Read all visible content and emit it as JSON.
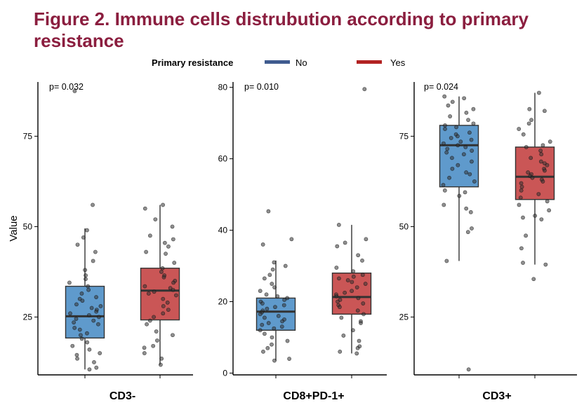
{
  "figure": {
    "title": "Figure 2. Immune cells distrubution according to primary resistance",
    "title_color": "#8B1E3F"
  },
  "legend": {
    "title": "Primary resistance",
    "placement": "top",
    "entries": [
      {
        "label": "No",
        "color": "#3F5B8F"
      },
      {
        "label": "Yes",
        "color": "#B22222"
      }
    ]
  },
  "colors": {
    "box_no": "#4E8FC6",
    "box_yes": "#C44444",
    "points": "#333333"
  },
  "chart_data": [
    {
      "type": "box",
      "category": "CD3-",
      "ylabel": "Value",
      "p_value": "p= 0.032",
      "ylim": [
        9,
        90
      ],
      "yticks": [
        25,
        50,
        75
      ],
      "series": [
        {
          "name": "No",
          "q1": 19.2,
          "median": 25.2,
          "q3": 33.5,
          "whisker_low": 10.5,
          "whisker_high": 49.5,
          "points": [
            87.5,
            56.0,
            49.0,
            47.0,
            45.0,
            43.0,
            40.5,
            38.0,
            36.5,
            35.5,
            34.5,
            33.5,
            32.5,
            31.5,
            30.5,
            30.0,
            29.5,
            28.5,
            28.0,
            27.5,
            27.0,
            26.5,
            26.0,
            25.5,
            25.0,
            24.5,
            24.0,
            23.5,
            23.0,
            22.0,
            21.5,
            20.5,
            20.0,
            19.0,
            18.0,
            17.0,
            16.0,
            15.0,
            14.5,
            13.5,
            12.5,
            11.0,
            10.5
          ]
        },
        {
          "name": "Yes",
          "q1": 24.2,
          "median": 32.3,
          "q3": 38.5,
          "whisker_low": 11.8,
          "whisker_high": 56.0,
          "points": [
            56.0,
            55.0,
            52.0,
            50.0,
            47.5,
            46.5,
            45.5,
            44.5,
            43.0,
            42.5,
            40.0,
            38.5,
            37.5,
            36.5,
            36.0,
            35.0,
            34.5,
            33.5,
            33.0,
            32.5,
            32.0,
            31.5,
            31.0,
            30.0,
            29.0,
            28.0,
            27.0,
            26.0,
            25.0,
            24.0,
            23.0,
            21.0,
            20.0,
            18.5,
            17.0,
            16.5,
            15.0,
            13.5,
            11.8
          ]
        }
      ]
    },
    {
      "type": "box",
      "category": "CD8+PD-1+",
      "ylabel": "",
      "p_value": "p= 0.010",
      "ylim": [
        -0.5,
        81.5
      ],
      "yticks": [
        0,
        20,
        40,
        60,
        80
      ],
      "series": [
        {
          "name": "No",
          "q1": 12.0,
          "median": 17.2,
          "q3": 21.0,
          "whisker_low": 3.5,
          "whisker_high": 31.5,
          "points": [
            45.3,
            37.5,
            36.0,
            31.0,
            30.0,
            29.0,
            27.5,
            26.5,
            25.0,
            24.0,
            23.0,
            22.0,
            21.5,
            21.0,
            20.5,
            20.0,
            19.5,
            19.0,
            18.5,
            18.0,
            17.5,
            17.0,
            16.5,
            16.0,
            15.5,
            15.0,
            14.5,
            14.0,
            13.5,
            13.0,
            12.5,
            12.0,
            11.0,
            10.0,
            9.0,
            8.0,
            7.0,
            6.0,
            4.0,
            3.5
          ]
        },
        {
          "name": "Yes",
          "q1": 16.5,
          "median": 21.3,
          "q3": 28.0,
          "whisker_low": 5.5,
          "whisker_high": 41.5,
          "points": [
            79.5,
            41.5,
            37.5,
            36.5,
            35.5,
            33.0,
            31.5,
            29.5,
            28.5,
            27.5,
            27.0,
            26.5,
            26.0,
            25.5,
            25.0,
            24.0,
            23.0,
            22.5,
            22.0,
            21.5,
            21.0,
            20.5,
            20.0,
            19.5,
            19.0,
            18.5,
            17.5,
            16.5,
            15.5,
            14.5,
            14.0,
            12.0,
            10.5,
            9.0,
            7.5,
            7.0,
            6.0,
            5.5
          ]
        }
      ]
    },
    {
      "type": "box",
      "category": "CD3+",
      "ylabel": "",
      "p_value": "p= 0.024",
      "ylim": [
        9,
        90
      ],
      "yticks": [
        25,
        50,
        75
      ],
      "series": [
        {
          "name": "No",
          "q1": 61.0,
          "median": 72.5,
          "q3": 78.0,
          "whisker_low": 40.5,
          "whisker_high": 86.0,
          "points": [
            86.0,
            85.5,
            84.5,
            83.5,
            82.5,
            81.5,
            80.5,
            79.5,
            78.5,
            78.0,
            77.5,
            77.0,
            76.0,
            75.5,
            75.0,
            74.5,
            74.0,
            73.5,
            73.0,
            72.5,
            72.0,
            71.5,
            71.0,
            70.5,
            70.0,
            69.0,
            68.0,
            67.0,
            66.0,
            65.0,
            64.5,
            63.5,
            62.5,
            61.5,
            60.0,
            59.5,
            58.5,
            56.0,
            55.0,
            54.0,
            49.5,
            48.5,
            40.5,
            10.5
          ]
        },
        {
          "name": "Yes",
          "q1": 57.5,
          "median": 63.8,
          "q3": 72.0,
          "whisker_low": 39.5,
          "whisker_high": 87.0,
          "points": [
            87.0,
            82.5,
            82.0,
            79.5,
            78.5,
            77.0,
            75.5,
            73.5,
            72.5,
            72.0,
            71.0,
            70.0,
            69.0,
            68.0,
            67.5,
            67.0,
            66.0,
            65.5,
            65.0,
            64.5,
            64.0,
            63.5,
            63.0,
            62.5,
            62.0,
            61.0,
            60.0,
            59.0,
            58.0,
            57.0,
            56.0,
            54.5,
            53.0,
            52.5,
            52.0,
            47.5,
            44.0,
            40.0,
            39.5,
            35.5
          ]
        }
      ]
    }
  ]
}
